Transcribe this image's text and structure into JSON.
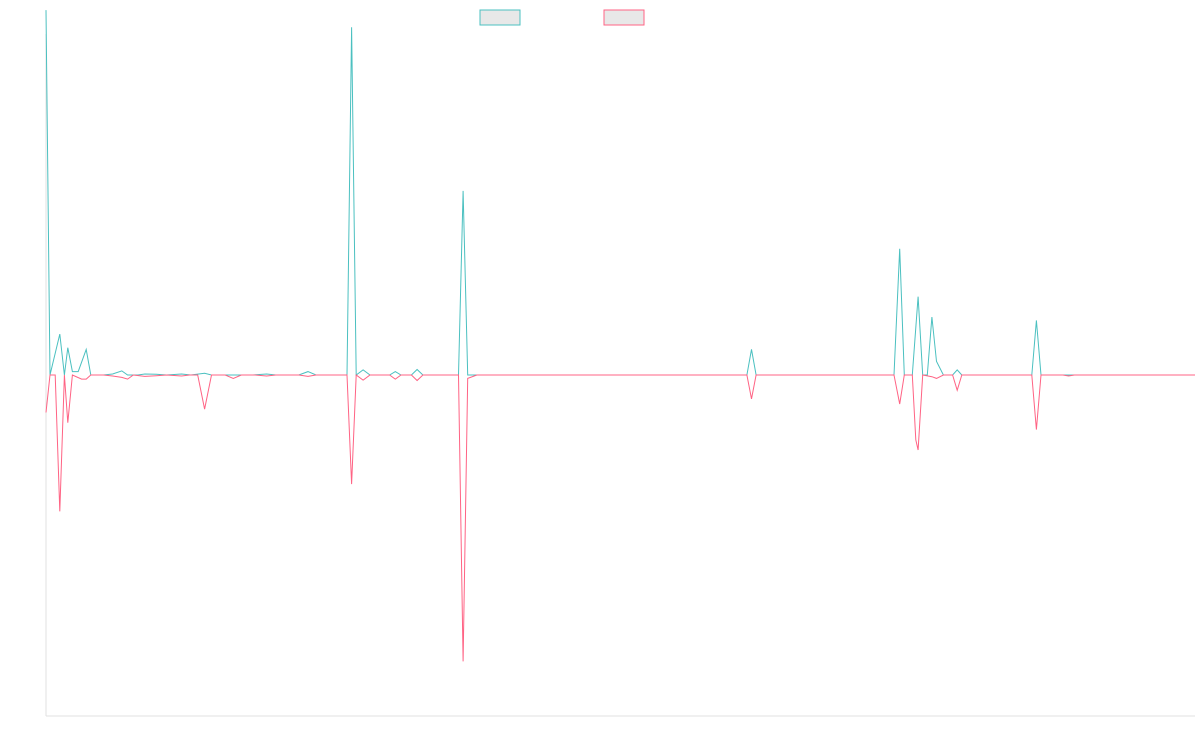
{
  "chart_data": {
    "type": "line",
    "title": "",
    "xlabel": "",
    "ylabel": "",
    "grid": false,
    "legend_position": "top-center",
    "x_range": [
      0,
      100
    ],
    "y_range": [
      -1.0,
      1.0
    ],
    "series": [
      {
        "name": "",
        "color": "#4bc0c0",
        "fill": "#e8e8e8",
        "points": [
          [
            0,
            1.07
          ],
          [
            0.35,
            0.0
          ],
          [
            1.2,
            0.12
          ],
          [
            1.6,
            0.0
          ],
          [
            1.9,
            0.08
          ],
          [
            2.3,
            0.01
          ],
          [
            2.8,
            0.01
          ],
          [
            3.5,
            0.075
          ],
          [
            3.9,
            0.0
          ],
          [
            5,
            0.0
          ],
          [
            5.8,
            0.003
          ],
          [
            6.6,
            0.012
          ],
          [
            7.1,
            0.0
          ],
          [
            8,
            0.0
          ],
          [
            8.6,
            0.003
          ],
          [
            9.6,
            0.002
          ],
          [
            10.5,
            0.0
          ],
          [
            11.8,
            0.003
          ],
          [
            12.6,
            0.0
          ],
          [
            13.8,
            0.005
          ],
          [
            14.4,
            0.0
          ],
          [
            16,
            0.0
          ],
          [
            18,
            0.0
          ],
          [
            19.2,
            0.003
          ],
          [
            20,
            0.0
          ],
          [
            22,
            0.0
          ],
          [
            22.8,
            0.01
          ],
          [
            23.5,
            0.0
          ],
          [
            25.6,
            0.0
          ],
          [
            26.2,
            0.0
          ],
          [
            26.6,
            1.02
          ],
          [
            27.0,
            0.0
          ],
          [
            27.6,
            0.015
          ],
          [
            28.2,
            0.0
          ],
          [
            29.9,
            0.0
          ],
          [
            30.4,
            0.01
          ],
          [
            30.9,
            0.0
          ],
          [
            31.8,
            0.0
          ],
          [
            32.3,
            0.016
          ],
          [
            32.8,
            0.0
          ],
          [
            33.8,
            0.0
          ],
          [
            35.2,
            0.0
          ],
          [
            35.9,
            0.0
          ],
          [
            36.3,
            0.54
          ],
          [
            36.7,
            0.0
          ],
          [
            37.5,
            0.0
          ],
          [
            60,
            0.0
          ],
          [
            61.0,
            0.0
          ],
          [
            61.4,
            0.075
          ],
          [
            61.8,
            0.0
          ],
          [
            73.8,
            0.0
          ],
          [
            74.3,
            0.37
          ],
          [
            74.7,
            0.0
          ],
          [
            75.4,
            0.0
          ],
          [
            75.9,
            0.23
          ],
          [
            76.3,
            0.0
          ],
          [
            76.7,
            0.0
          ],
          [
            77.1,
            0.17
          ],
          [
            77.5,
            0.04
          ],
          [
            78.1,
            0.0
          ],
          [
            78.9,
            0.0
          ],
          [
            79.3,
            0.015
          ],
          [
            79.7,
            0.0
          ],
          [
            85.8,
            0.0
          ],
          [
            86.2,
            0.16
          ],
          [
            86.6,
            0.0
          ],
          [
            90,
            0.0
          ],
          [
            100,
            0.0
          ]
        ]
      },
      {
        "name": "",
        "color": "#ff6384",
        "fill": "#e8e8e8",
        "points": [
          [
            0,
            -0.11
          ],
          [
            0.35,
            0.0
          ],
          [
            0.8,
            0.0
          ],
          [
            1.2,
            -0.4
          ],
          [
            1.6,
            0.0
          ],
          [
            1.9,
            -0.14
          ],
          [
            2.3,
            0.0
          ],
          [
            3.1,
            -0.012
          ],
          [
            3.5,
            -0.012
          ],
          [
            3.9,
            0.0
          ],
          [
            5,
            0.0
          ],
          [
            5.8,
            -0.003
          ],
          [
            6.6,
            -0.007
          ],
          [
            7.1,
            -0.012
          ],
          [
            7.6,
            0.0
          ],
          [
            8.6,
            -0.004
          ],
          [
            9.6,
            -0.002
          ],
          [
            10.5,
            0.0
          ],
          [
            11.8,
            -0.003
          ],
          [
            12.5,
            0.0
          ],
          [
            13.2,
            0.0
          ],
          [
            13.8,
            -0.1
          ],
          [
            14.4,
            0.0
          ],
          [
            15.6,
            0.0
          ],
          [
            16.3,
            -0.01
          ],
          [
            17,
            0.0
          ],
          [
            18.2,
            0.0
          ],
          [
            19.2,
            -0.003
          ],
          [
            20,
            0.0
          ],
          [
            22.0,
            0.0
          ],
          [
            22.8,
            -0.004
          ],
          [
            23.5,
            0.0
          ],
          [
            26.2,
            0.0
          ],
          [
            26.6,
            -0.32
          ],
          [
            27.0,
            0.0
          ],
          [
            27.6,
            -0.015
          ],
          [
            28.2,
            0.0
          ],
          [
            29.9,
            0.0
          ],
          [
            30.4,
            -0.012
          ],
          [
            30.9,
            0.0
          ],
          [
            31.8,
            0.0
          ],
          [
            32.3,
            -0.016
          ],
          [
            32.8,
            0.0
          ],
          [
            33.8,
            0.0
          ],
          [
            35.2,
            0.0
          ],
          [
            35.9,
            0.0
          ],
          [
            36.3,
            -0.84
          ],
          [
            36.7,
            -0.01
          ],
          [
            37.5,
            0.0
          ],
          [
            61.0,
            0.0
          ],
          [
            61.4,
            -0.07
          ],
          [
            61.8,
            0.0
          ],
          [
            73.8,
            0.0
          ],
          [
            74.3,
            -0.085
          ],
          [
            74.7,
            0.0
          ],
          [
            75.4,
            0.0
          ],
          [
            75.7,
            -0.19
          ],
          [
            75.9,
            -0.22
          ],
          [
            76.3,
            0.0
          ],
          [
            77.1,
            -0.005
          ],
          [
            77.5,
            -0.01
          ],
          [
            78.1,
            0.0
          ],
          [
            78.9,
            0.0
          ],
          [
            79.3,
            -0.045
          ],
          [
            79.7,
            0.0
          ],
          [
            85.8,
            0.0
          ],
          [
            86.2,
            -0.16
          ],
          [
            86.6,
            0.0
          ],
          [
            88.5,
            0.0
          ],
          [
            89.0,
            -0.003
          ],
          [
            89.5,
            0.0
          ],
          [
            100,
            0.0
          ]
        ]
      }
    ]
  }
}
